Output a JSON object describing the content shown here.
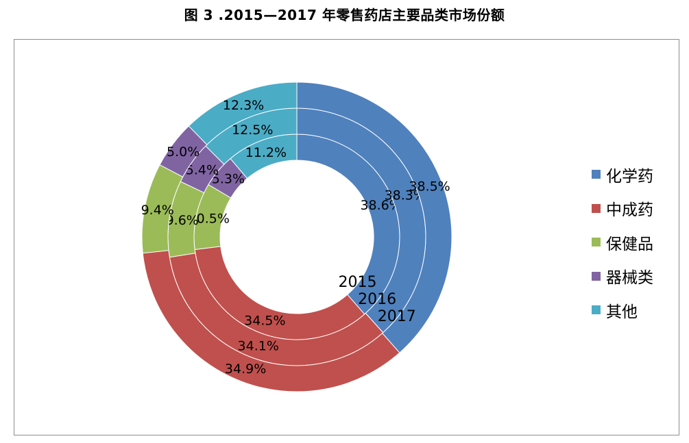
{
  "chart_data": {
    "type": "donut",
    "title": "图 3 .2015—2017 年零售药店主要品类市场份额",
    "categories": [
      "化学药",
      "中成药",
      "保健品",
      "器械类",
      "其他"
    ],
    "colors": [
      "#4f81bd",
      "#c0504d",
      "#9bbb59",
      "#8064a2",
      "#4bacc6"
    ],
    "series": [
      {
        "name": "2015",
        "values": [
          38.6,
          34.5,
          10.5,
          5.3,
          11.2
        ]
      },
      {
        "name": "2016",
        "values": [
          38.3,
          34.1,
          9.6,
          5.4,
          12.5
        ]
      },
      {
        "name": "2017",
        "values": [
          38.5,
          34.9,
          9.4,
          5.0,
          12.3
        ]
      }
    ],
    "value_format": "{v}%",
    "legend_position": "right"
  }
}
